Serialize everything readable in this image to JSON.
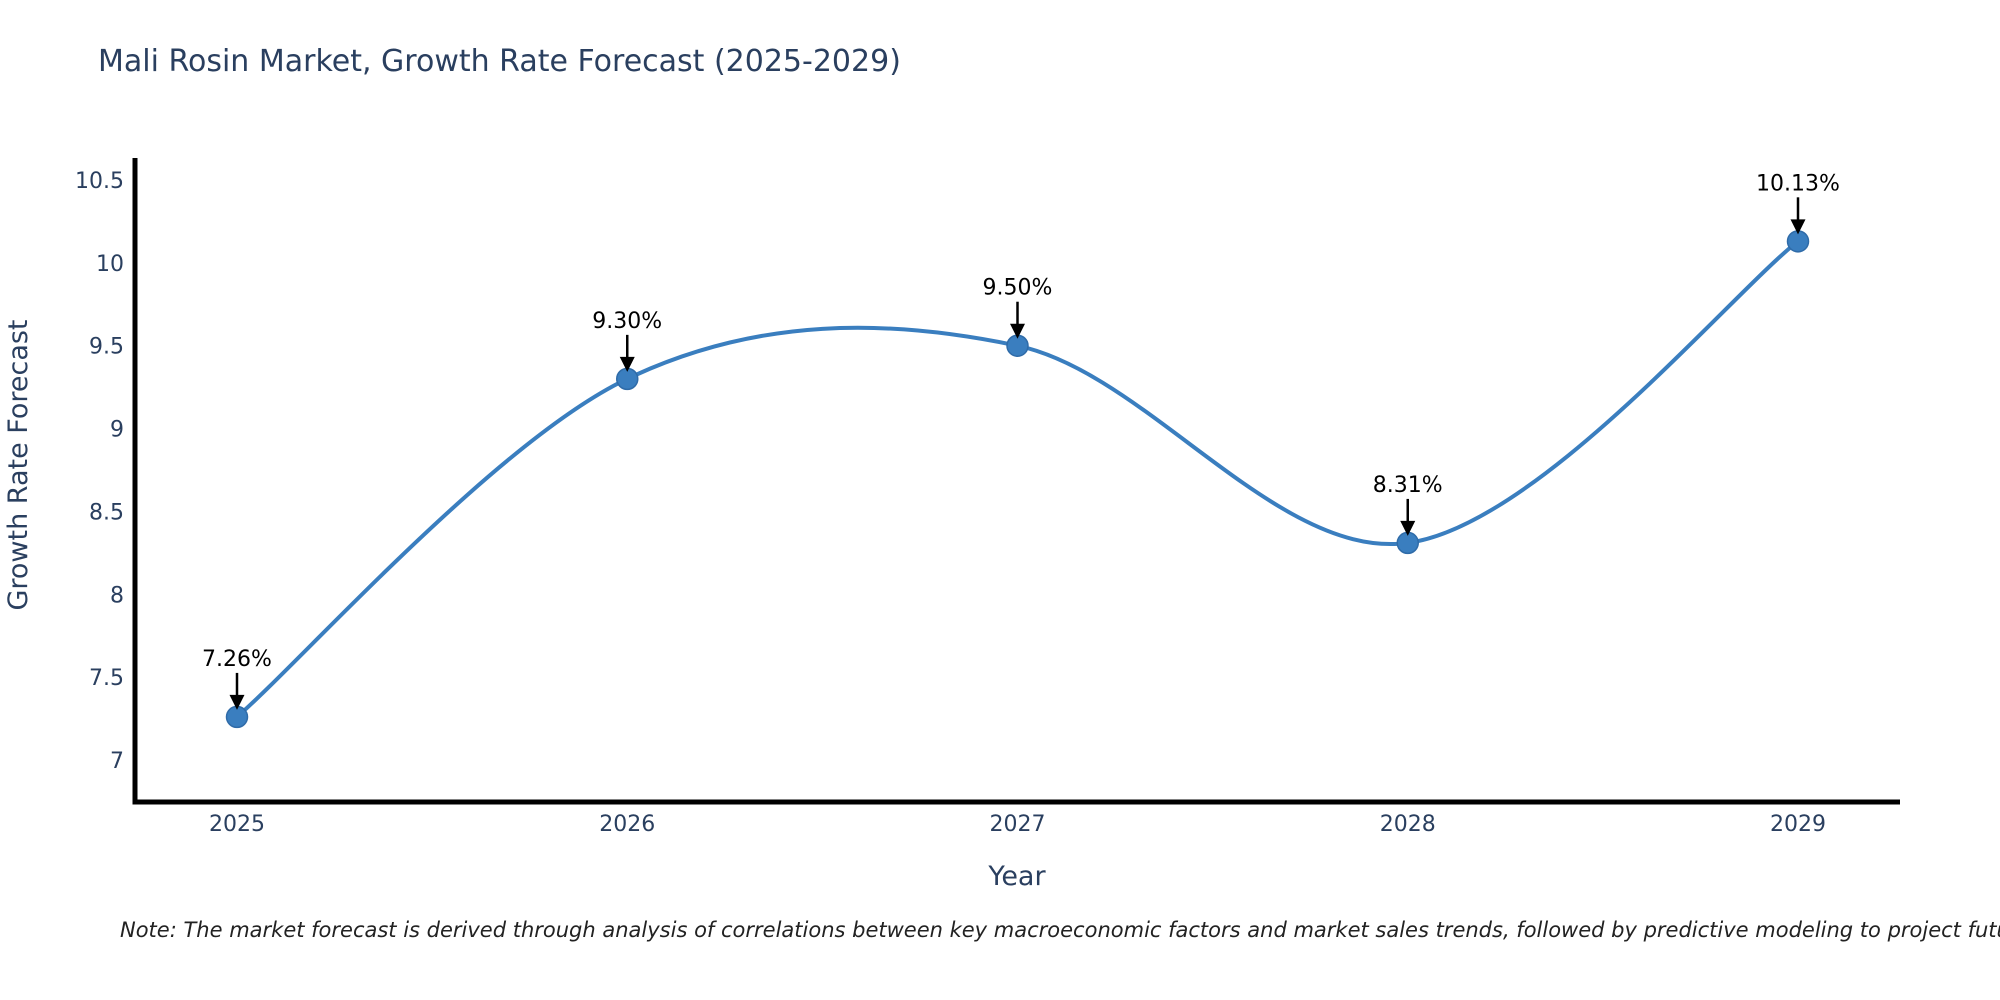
{
  "chart_data": {
    "type": "line",
    "title": "Mali Rosin Market, Growth Rate Forecast (2025-2029)",
    "xlabel": "Year",
    "ylabel": "Growth Rate Forecast",
    "categories": [
      2025,
      2026,
      2027,
      2028,
      2029
    ],
    "x_tick_labels": [
      "2025",
      "2026",
      "2027",
      "2028",
      "2029"
    ],
    "values": [
      7.26,
      9.3,
      9.5,
      8.31,
      10.13
    ],
    "point_labels": [
      "7.26%",
      "9.30%",
      "9.50%",
      "8.31%",
      "10.13%"
    ],
    "y_ticks": [
      7,
      7.5,
      8,
      8.5,
      9,
      9.5,
      10,
      10.5
    ],
    "y_tick_labels": [
      "7",
      "7.5",
      "8",
      "8.5",
      "9",
      "9.5",
      "10",
      "10.5"
    ],
    "ylim": [
      6.76,
      10.62
    ],
    "line_shape": "spline",
    "grid": false,
    "legend": false,
    "colors": {
      "line": "#3a7ebf",
      "marker": "#3a7ebf",
      "marker_edge": "#2f6ba8",
      "axis": "#000000",
      "tick_text": "#2a3f5f",
      "axis_title_text": "#2a3f5f",
      "title_text": "#2a3f5f",
      "annotation": "#000000"
    }
  },
  "note": {
    "text": "Note: The market forecast is derived through analysis of correlations between key macroeconomic factors and market sales trends, followed by predictive modeling to project future sal"
  }
}
